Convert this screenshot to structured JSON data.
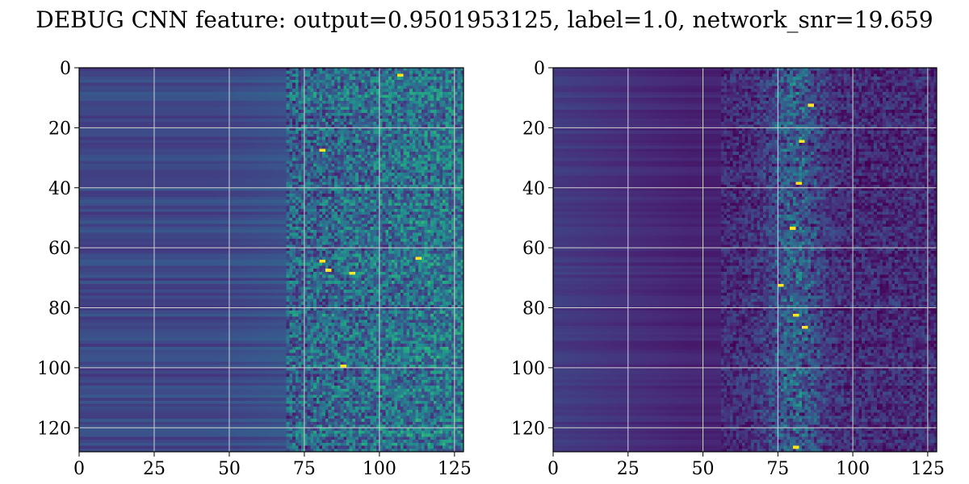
{
  "title": "DEBUG CNN feature: output=0.9501953125, label=1.0, network_snr=19.659",
  "chart_data": [
    {
      "type": "heatmap",
      "colormap": "viridis",
      "grid": true,
      "xlim": [
        0,
        128
      ],
      "ylim": [
        128,
        0
      ],
      "rows": 128,
      "cols": 128,
      "xticks": [
        "0",
        "25",
        "50",
        "75",
        "100",
        "125"
      ],
      "yticks": [
        "0",
        "20",
        "40",
        "60",
        "80",
        "100",
        "120"
      ],
      "description_values": {
        "background_level": 0.22,
        "noisy_region_start_col": 70,
        "hot_spots": [
          [
            27,
            80
          ],
          [
            64,
            80
          ],
          [
            67,
            82
          ],
          [
            68,
            90
          ],
          [
            63,
            112
          ],
          [
            99,
            87
          ],
          [
            2,
            106
          ]
        ]
      }
    },
    {
      "type": "heatmap",
      "colormap": "viridis",
      "grid": true,
      "xlim": [
        0,
        128
      ],
      "ylim": [
        128,
        0
      ],
      "rows": 128,
      "cols": 128,
      "xticks": [
        "0",
        "25",
        "50",
        "75",
        "100",
        "125"
      ],
      "yticks": [
        "0",
        "20",
        "40",
        "60",
        "80",
        "100",
        "120"
      ],
      "description_values": {
        "background_level": 0.1,
        "signal_band_center_col": 80,
        "hot_spots": [
          [
            12,
            85
          ],
          [
            24,
            82
          ],
          [
            38,
            81
          ],
          [
            53,
            79
          ],
          [
            72,
            75
          ],
          [
            82,
            80
          ],
          [
            86,
            83
          ],
          [
            126,
            80
          ]
        ]
      }
    }
  ]
}
